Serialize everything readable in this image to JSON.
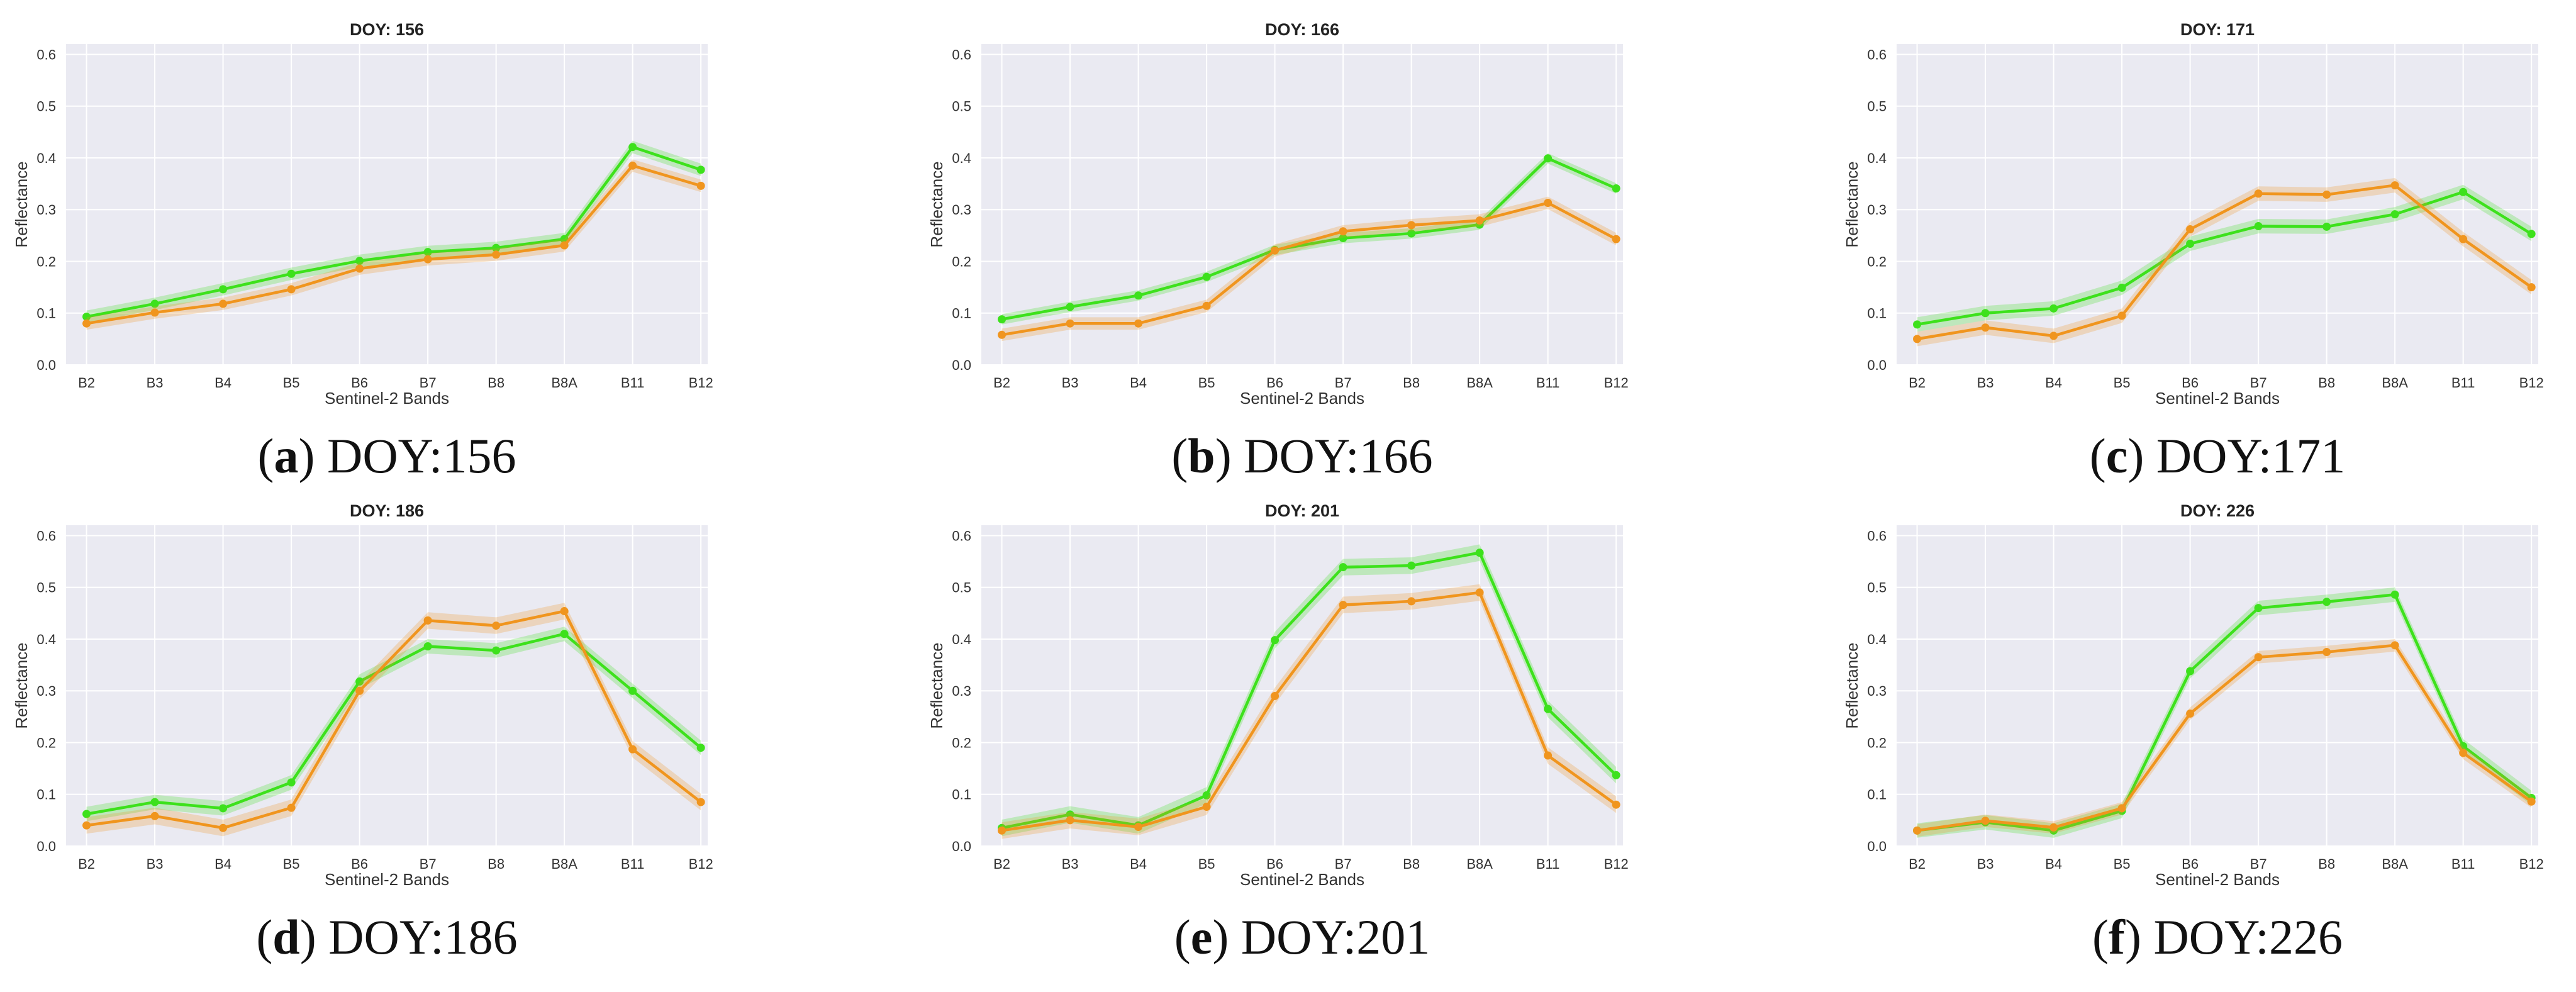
{
  "chart_data": [
    {
      "type": "line",
      "title": "DOY: 156",
      "caption_letter": "a",
      "caption_text": "DOY:156",
      "xlabel": "Sentinel-2 Bands",
      "ylabel": "Reflectance",
      "ylim": [
        0,
        0.62
      ],
      "yticks": [
        "0.0",
        "0.1",
        "0.2",
        "0.3",
        "0.4",
        "0.5",
        "0.6"
      ],
      "categories": [
        "B2",
        "B3",
        "B4",
        "B5",
        "B6",
        "B7",
        "B8",
        "B8A",
        "B11",
        "B12"
      ],
      "series": [
        {
          "name": "green",
          "color": "#3de11c",
          "band": 0.012,
          "values": [
            0.093,
            0.118,
            0.146,
            0.176,
            0.201,
            0.218,
            0.226,
            0.243,
            0.421,
            0.377
          ]
        },
        {
          "name": "orange",
          "color": "#f0951e",
          "band": 0.012,
          "values": [
            0.08,
            0.101,
            0.118,
            0.146,
            0.186,
            0.204,
            0.213,
            0.231,
            0.385,
            0.346
          ]
        }
      ]
    },
    {
      "type": "line",
      "title": "DOY: 166",
      "caption_letter": "b",
      "caption_text": "DOY:166",
      "xlabel": "Sentinel-2 Bands",
      "ylabel": "Reflectance",
      "ylim": [
        0,
        0.62
      ],
      "yticks": [
        "0.0",
        "0.1",
        "0.2",
        "0.3",
        "0.4",
        "0.5",
        "0.6"
      ],
      "categories": [
        "B2",
        "B3",
        "B4",
        "B5",
        "B6",
        "B7",
        "B8",
        "B8A",
        "B11",
        "B12"
      ],
      "series": [
        {
          "name": "green",
          "color": "#3de11c",
          "band": 0.01,
          "values": [
            0.088,
            0.112,
            0.134,
            0.17,
            0.222,
            0.245,
            0.254,
            0.271,
            0.399,
            0.341
          ]
        },
        {
          "name": "orange",
          "color": "#f0951e",
          "band": 0.012,
          "values": [
            0.058,
            0.08,
            0.08,
            0.114,
            0.221,
            0.258,
            0.27,
            0.279,
            0.313,
            0.243
          ]
        }
      ]
    },
    {
      "type": "line",
      "title": "DOY: 171",
      "caption_letter": "c",
      "caption_text": "DOY:171",
      "xlabel": "Sentinel-2 Bands",
      "ylabel": "Reflectance",
      "ylim": [
        0,
        0.62
      ],
      "yticks": [
        "0.0",
        "0.1",
        "0.2",
        "0.3",
        "0.4",
        "0.5",
        "0.6"
      ],
      "categories": [
        "B2",
        "B3",
        "B4",
        "B5",
        "B6",
        "B7",
        "B8",
        "B8A",
        "B11",
        "B12"
      ],
      "series": [
        {
          "name": "green",
          "color": "#3de11c",
          "band": 0.014,
          "values": [
            0.078,
            0.1,
            0.109,
            0.149,
            0.234,
            0.268,
            0.267,
            0.291,
            0.334,
            0.253
          ]
        },
        {
          "name": "orange",
          "color": "#f0951e",
          "band": 0.014,
          "values": [
            0.05,
            0.072,
            0.056,
            0.095,
            0.262,
            0.331,
            0.329,
            0.347,
            0.243,
            0.15
          ]
        }
      ]
    },
    {
      "type": "line",
      "title": "DOY: 186",
      "caption_letter": "d",
      "caption_text": "DOY:186",
      "xlabel": "Sentinel-2 Bands",
      "ylabel": "Reflectance",
      "ylim": [
        0,
        0.62
      ],
      "yticks": [
        "0.0",
        "0.1",
        "0.2",
        "0.3",
        "0.4",
        "0.5",
        "0.6"
      ],
      "categories": [
        "B2",
        "B3",
        "B4",
        "B5",
        "B6",
        "B7",
        "B8",
        "B8A",
        "B11",
        "B12"
      ],
      "series": [
        {
          "name": "green",
          "color": "#3de11c",
          "band": 0.014,
          "values": [
            0.062,
            0.085,
            0.073,
            0.123,
            0.318,
            0.386,
            0.378,
            0.41,
            0.3,
            0.19
          ]
        },
        {
          "name": "orange",
          "color": "#f0951e",
          "band": 0.016,
          "values": [
            0.04,
            0.058,
            0.035,
            0.074,
            0.3,
            0.436,
            0.426,
            0.454,
            0.187,
            0.085
          ]
        }
      ]
    },
    {
      "type": "line",
      "title": "DOY: 201",
      "caption_letter": "e",
      "caption_text": "DOY:201",
      "xlabel": "Sentinel-2 Bands",
      "ylabel": "Reflectance",
      "ylim": [
        0,
        0.62
      ],
      "yticks": [
        "0.0",
        "0.1",
        "0.2",
        "0.3",
        "0.4",
        "0.5",
        "0.6"
      ],
      "categories": [
        "B2",
        "B3",
        "B4",
        "B5",
        "B6",
        "B7",
        "B8",
        "B8A",
        "B11",
        "B12"
      ],
      "series": [
        {
          "name": "green",
          "color": "#3de11c",
          "band": 0.016,
          "values": [
            0.035,
            0.061,
            0.04,
            0.098,
            0.398,
            0.539,
            0.542,
            0.567,
            0.265,
            0.137
          ]
        },
        {
          "name": "orange",
          "color": "#f0951e",
          "band": 0.016,
          "values": [
            0.03,
            0.05,
            0.037,
            0.076,
            0.29,
            0.466,
            0.473,
            0.49,
            0.175,
            0.08
          ]
        }
      ]
    },
    {
      "type": "line",
      "title": "DOY: 226",
      "caption_letter": "f",
      "caption_text": "DOY:226",
      "xlabel": "Sentinel-2 Bands",
      "ylabel": "Reflectance",
      "ylim": [
        0,
        0.62
      ],
      "yticks": [
        "0.0",
        "0.1",
        "0.2",
        "0.3",
        "0.4",
        "0.5",
        "0.6"
      ],
      "categories": [
        "B2",
        "B3",
        "B4",
        "B5",
        "B6",
        "B7",
        "B8",
        "B8A",
        "B11",
        "B12"
      ],
      "series": [
        {
          "name": "green",
          "color": "#3de11c",
          "band": 0.014,
          "values": [
            0.03,
            0.046,
            0.03,
            0.068,
            0.338,
            0.46,
            0.472,
            0.486,
            0.193,
            0.093
          ]
        },
        {
          "name": "orange",
          "color": "#f0951e",
          "band": 0.012,
          "values": [
            0.03,
            0.049,
            0.036,
            0.073,
            0.256,
            0.365,
            0.375,
            0.388,
            0.18,
            0.086
          ]
        }
      ]
    }
  ],
  "colors": {
    "plot_background": "#eaeaf2",
    "gridline": "#ffffff",
    "text": "#333333"
  }
}
